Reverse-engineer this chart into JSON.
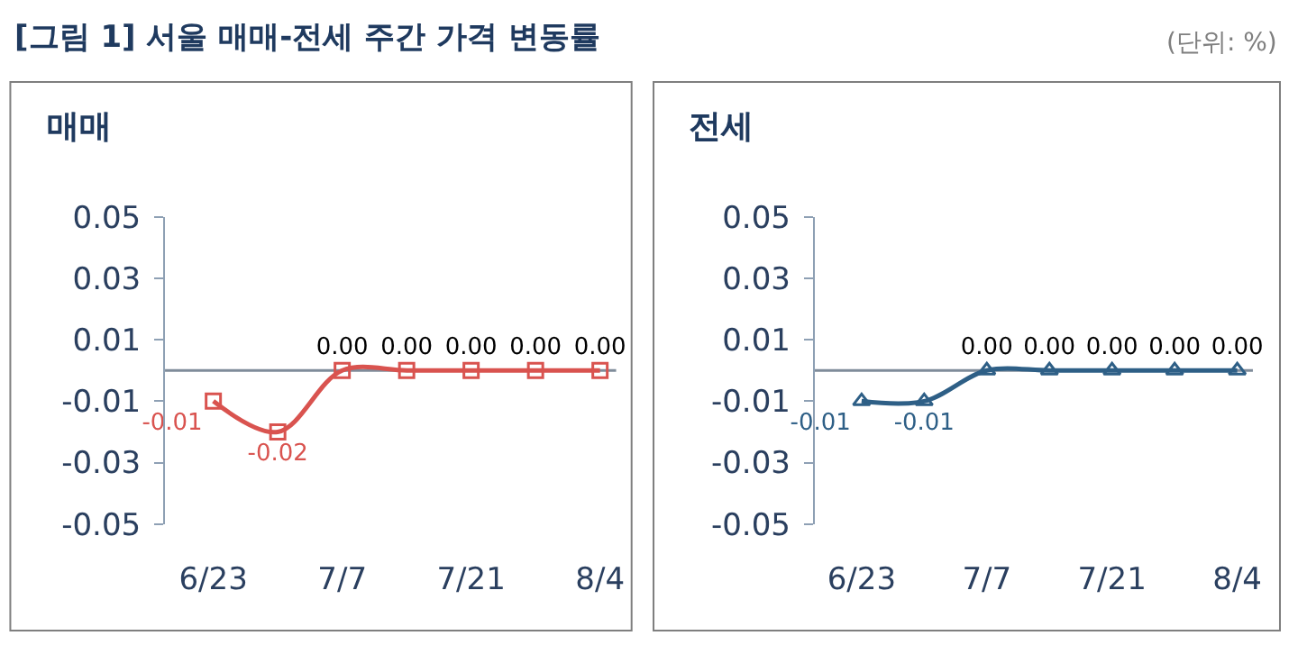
{
  "chart_data": [
    {
      "type": "line",
      "title": "매매",
      "annotations": [
        "[그림 1] 서울 매매-전세 주간 가격 변동률",
        "(단위: %)"
      ],
      "categories": [
        "6/23",
        null,
        "7/7",
        null,
        "7/21",
        null,
        "8/4"
      ],
      "series": [
        {
          "color": "#d9534f",
          "values": [
            -0.01,
            -0.02,
            0,
            0,
            0,
            0,
            0
          ],
          "value_labels": [
            "-0.01",
            "-0.02",
            "0.00",
            "0.00",
            "0.00",
            "0.00",
            "0.00"
          ],
          "marker": "square"
        }
      ],
      "ylim": [
        -0.05,
        0.05
      ],
      "yticks": [
        -0.05,
        -0.03,
        -0.01,
        0.01,
        0.03,
        0.05
      ],
      "ref_lines": [
        {
          "axis": "y",
          "value": 0,
          "color": "#7f8c9a"
        }
      ],
      "grid": false,
      "legend": false
    },
    {
      "type": "line",
      "title": "전세",
      "categories": [
        "6/23",
        null,
        "7/7",
        null,
        "7/21",
        null,
        "8/4"
      ],
      "series": [
        {
          "color": "#2e5f86",
          "values": [
            -0.01,
            -0.01,
            0,
            0,
            0,
            0,
            0
          ],
          "value_labels": [
            "-0.01",
            "-0.01",
            "0.00",
            "0.00",
            "0.00",
            "0.00",
            "0.00"
          ],
          "marker": "triangle"
        }
      ],
      "ylim": [
        -0.05,
        0.05
      ],
      "yticks": [
        -0.05,
        -0.03,
        -0.01,
        0.01,
        0.03,
        0.05
      ],
      "ref_lines": [
        {
          "axis": "y",
          "value": 0,
          "color": "#7f8c9a"
        }
      ],
      "grid": false,
      "legend": false
    }
  ]
}
